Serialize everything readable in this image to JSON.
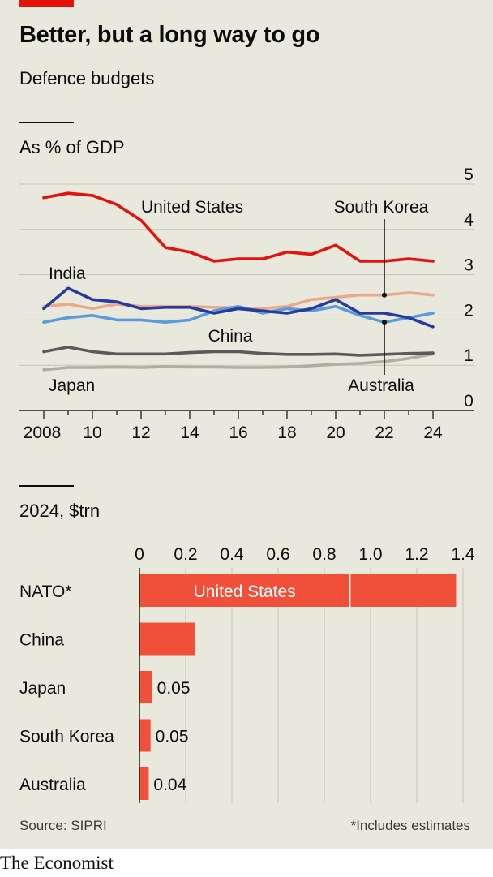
{
  "title": "Better, but a long way to go",
  "subtitle": "Defence budgets",
  "source": "Source: SIPRI",
  "footnote": "*Includes estimates",
  "brand": "The Economist",
  "colors": {
    "united_states": "#e3120b",
    "india": "#273b9c",
    "south_korea": "#5b9bd9",
    "china": "#5a5a5a",
    "japan": "#b0aea3",
    "australia": "#e9a98a",
    "bar": "#f0503a"
  },
  "chart_data": [
    {
      "type": "line",
      "ylabel": "As % of GDP",
      "ylim": [
        0,
        5
      ],
      "yticks": [
        "0",
        "1",
        "2",
        "3",
        "4",
        "5"
      ],
      "xlim": [
        2008,
        2024
      ],
      "xticks": [
        {
          "value": 2008,
          "label": "2008"
        },
        {
          "value": 2010,
          "label": "10"
        },
        {
          "value": 2012,
          "label": "12"
        },
        {
          "value": 2014,
          "label": "14"
        },
        {
          "value": 2016,
          "label": "16"
        },
        {
          "value": 2018,
          "label": "18"
        },
        {
          "value": 2020,
          "label": "20"
        },
        {
          "value": 2022,
          "label": "22"
        },
        {
          "value": 2024,
          "label": "24"
        }
      ],
      "grid": true,
      "x": [
        2008,
        2009,
        2010,
        2011,
        2012,
        2013,
        2014,
        2015,
        2016,
        2017,
        2018,
        2019,
        2020,
        2021,
        2022,
        2023,
        2024
      ],
      "series": [
        {
          "key": "japan",
          "name": "Japan",
          "values": [
            0.9,
            0.95,
            0.95,
            0.96,
            0.95,
            0.97,
            0.96,
            0.96,
            0.95,
            0.95,
            0.96,
            0.99,
            1.02,
            1.04,
            1.08,
            1.15,
            1.25
          ]
        },
        {
          "key": "china",
          "name": "China",
          "values": [
            1.3,
            1.4,
            1.3,
            1.25,
            1.25,
            1.25,
            1.28,
            1.3,
            1.3,
            1.26,
            1.24,
            1.24,
            1.25,
            1.22,
            1.24,
            1.26,
            1.27
          ]
        },
        {
          "key": "australia",
          "name": "Australia",
          "values": [
            2.3,
            2.35,
            2.25,
            2.35,
            2.3,
            2.3,
            2.3,
            2.28,
            2.27,
            2.25,
            2.3,
            2.45,
            2.5,
            2.55,
            2.55,
            2.6,
            2.55
          ]
        },
        {
          "key": "south_korea",
          "name": "South Korea",
          "values": [
            1.95,
            2.05,
            2.1,
            2.0,
            2.0,
            1.95,
            2.0,
            2.2,
            2.3,
            2.15,
            2.25,
            2.2,
            2.3,
            2.1,
            1.95,
            2.05,
            2.15
          ]
        },
        {
          "key": "india",
          "name": "India",
          "values": [
            2.25,
            2.7,
            2.45,
            2.4,
            2.25,
            2.28,
            2.28,
            2.15,
            2.25,
            2.2,
            2.15,
            2.25,
            2.45,
            2.15,
            2.15,
            2.05,
            1.85
          ]
        },
        {
          "key": "united_states",
          "name": "United States",
          "values": [
            4.7,
            4.8,
            4.75,
            4.55,
            4.2,
            3.6,
            3.5,
            3.3,
            3.35,
            3.35,
            3.5,
            3.45,
            3.65,
            3.3,
            3.3,
            3.35,
            3.3
          ]
        }
      ]
    },
    {
      "type": "bar",
      "orientation": "horizontal",
      "title": "2024, $trn",
      "xlim": [
        0,
        1.4
      ],
      "xticks": [
        "0",
        "0.2",
        "0.4",
        "0.6",
        "0.8",
        "1.0",
        "1.2",
        "1.4"
      ],
      "grid": true,
      "categories": [
        "NATO*",
        "China",
        "Japan",
        "South Korea",
        "Australia"
      ],
      "values": [
        1.37,
        0.24,
        0.055,
        0.048,
        0.04
      ],
      "data_labels": [
        "",
        "",
        "0.05",
        "0.05",
        "0.04"
      ],
      "segment": {
        "category": "NATO*",
        "label": "United States",
        "value": 0.91
      }
    }
  ]
}
